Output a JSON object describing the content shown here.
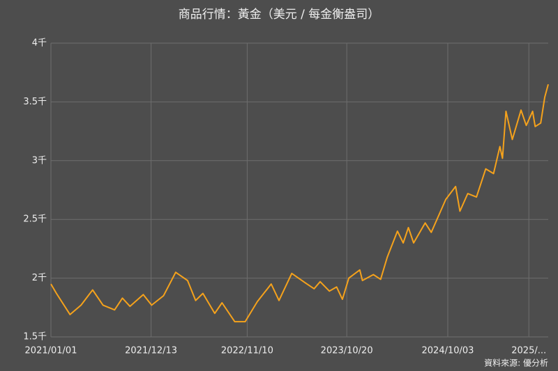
{
  "chart_data": {
    "type": "line",
    "title": "商品行情：黃金（美元 / 每金衡盎司）",
    "source": "資料來源: 優分析",
    "x": [
      "2021/01/01",
      "2021/01/20",
      "2021/03/08",
      "2021/04/15",
      "2021/05/25",
      "2021/06/30",
      "2021/08/09",
      "2021/09/05",
      "2021/10/01",
      "2021/11/16",
      "2021/12/15",
      "2022/01/25",
      "2022/03/08",
      "2022/04/18",
      "2022/05/16",
      "2022/06/10",
      "2022/07/21",
      "2022/08/15",
      "2022/09/28",
      "2022/11/03",
      "2022/12/15",
      "2023/02/01",
      "2023/02/28",
      "2023/04/13",
      "2023/05/30",
      "2023/06/29",
      "2023/07/20",
      "2023/08/21",
      "2023/09/15",
      "2023/10/05",
      "2023/10/27",
      "2023/12/04",
      "2023/12/13",
      "2024/01/20",
      "2024/02/14",
      "2024/03/08",
      "2024/04/12",
      "2024/05/02",
      "2024/05/20",
      "2024/06/07",
      "2024/07/17",
      "2024/08/07",
      "2024/09/26",
      "2024/10/30",
      "2024/11/14",
      "2024/12/11",
      "2025/01/10",
      "2025/02/11",
      "2025/03/10",
      "2025/04/01",
      "2025/04/10",
      "2025/04/22",
      "2025/05/14",
      "2025/06/13",
      "2025/07/01",
      "2025/07/23",
      "2025/08/01",
      "2025/08/20",
      "2025/09/03",
      "2025/09/15"
    ],
    "series": [
      {
        "name": "黃金",
        "color": "#f5a21c",
        "values": [
          1950,
          1870,
          1690,
          1770,
          1900,
          1770,
          1730,
          1830,
          1760,
          1860,
          1770,
          1850,
          2050,
          1980,
          1810,
          1870,
          1700,
          1790,
          1630,
          1630,
          1800,
          1950,
          1810,
          2040,
          1960,
          1910,
          1970,
          1890,
          1925,
          1820,
          2000,
          2070,
          1980,
          2030,
          1990,
          2180,
          2400,
          2300,
          2430,
          2300,
          2470,
          2390,
          2670,
          2780,
          2570,
          2720,
          2690,
          2930,
          2890,
          3120,
          3020,
          3420,
          3180,
          3430,
          3300,
          3420,
          3290,
          3320,
          3540,
          3650
        ]
      }
    ],
    "xlim": [
      "2021/01/01",
      "2025/09/15"
    ],
    "xticks": [
      {
        "value": "2021/01/01",
        "label": "2021/01/01"
      },
      {
        "value": "2021/12/13",
        "label": "2021/12/13"
      },
      {
        "value": "2022/11/10",
        "label": "2022/11/10"
      },
      {
        "value": "2023/10/20",
        "label": "2023/10/20"
      },
      {
        "value": "2024/10/03",
        "label": "2024/10/03"
      },
      {
        "value": "2025/07/10",
        "label": "2025/..."
      }
    ],
    "ylim": [
      1500,
      4000
    ],
    "yticks": [
      {
        "value": 1500,
        "label": "1.5千"
      },
      {
        "value": 2000,
        "label": "2千"
      },
      {
        "value": 2500,
        "label": "2.5千"
      },
      {
        "value": 3000,
        "label": "3千"
      },
      {
        "value": 3500,
        "label": "3.5千"
      },
      {
        "value": 4000,
        "label": "4千"
      }
    ],
    "grid": true
  }
}
